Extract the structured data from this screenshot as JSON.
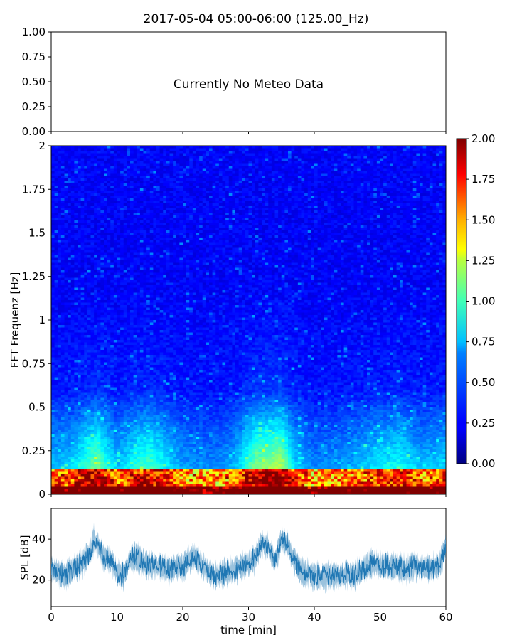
{
  "figure": {
    "title": "2017-05-04 05:00-06:00 (125.00_Hz)"
  },
  "meteo_panel": {
    "message": "Currently No Meteo Data",
    "yticks": [
      "1.00",
      "0.75",
      "0.50",
      "0.25",
      "0.00"
    ]
  },
  "spectrogram_panel": {
    "ylabel": "FFT Frequenz [Hz]",
    "yticks": [
      "2",
      "1.75",
      "1.5",
      "1.25",
      "1",
      "0.75",
      "0.5",
      "0.25",
      "0"
    ]
  },
  "colorbar": {
    "ticks": [
      "2.00",
      "1.75",
      "1.50",
      "1.25",
      "1.00",
      "0.75",
      "0.50",
      "0.25",
      "0.00"
    ]
  },
  "spl_panel": {
    "ylabel": "SPL [dB]",
    "xlabel": "time [min]",
    "yticks": [
      "40",
      "20"
    ],
    "xticks": [
      "0",
      "10",
      "20",
      "30",
      "40",
      "50",
      "60"
    ],
    "color": "#1f77b4"
  },
  "chart_data": [
    {
      "type": "line",
      "title": "2017-05-04 05:00-06:00 (125.00_Hz)",
      "ylim": [
        0,
        1
      ],
      "annotation": "Currently No Meteo Data",
      "series": []
    },
    {
      "type": "heatmap",
      "xlabel": "time [min]",
      "ylabel": "FFT Frequenz [Hz]",
      "xlim": [
        0,
        60
      ],
      "ylim": [
        0,
        2
      ],
      "clim": [
        0,
        2
      ],
      "colormap": "jet",
      "time_profile_min": [
        0,
        3,
        5,
        7,
        10,
        13,
        15,
        20,
        25,
        28,
        31,
        33,
        35,
        37,
        40,
        45,
        50,
        53,
        56,
        60
      ],
      "time_profile_intensity": [
        0.35,
        0.4,
        0.55,
        0.7,
        0.35,
        0.55,
        0.6,
        0.3,
        0.25,
        0.35,
        0.7,
        0.75,
        0.8,
        0.4,
        0.25,
        0.3,
        0.45,
        0.5,
        0.35,
        0.4
      ]
    },
    {
      "type": "line",
      "xlabel": "time [min]",
      "ylabel": "SPL [dB]",
      "xlim": [
        0,
        60
      ],
      "ylim": [
        7,
        55
      ],
      "series": [
        {
          "x": [
            0,
            1,
            2,
            3,
            4,
            5,
            6,
            6.5,
            7,
            7.5,
            8,
            9,
            10,
            11,
            12,
            13,
            14,
            15,
            16,
            17,
            18,
            19,
            20,
            21,
            22,
            23,
            24,
            25,
            26,
            27,
            28,
            29,
            30,
            31,
            32,
            33,
            34,
            35,
            36,
            37,
            38,
            39,
            40,
            41,
            42,
            43,
            44,
            45,
            46,
            47,
            48,
            49,
            50,
            51,
            52,
            53,
            54,
            55,
            56,
            57,
            58,
            59,
            60
          ],
          "y": [
            25,
            24,
            22,
            24,
            27,
            29,
            34,
            40,
            38,
            35,
            31,
            30,
            24,
            22,
            30,
            31,
            29,
            27,
            27,
            26,
            25,
            27,
            26,
            30,
            31,
            27,
            24,
            22,
            23,
            24,
            25,
            27,
            28,
            30,
            38,
            36,
            29,
            40,
            36,
            30,
            24,
            23,
            22,
            21,
            22,
            22,
            22,
            23,
            22,
            24,
            27,
            28,
            27,
            26,
            27,
            26,
            25,
            27,
            26,
            26,
            26,
            27,
            36
          ]
        }
      ]
    }
  ]
}
